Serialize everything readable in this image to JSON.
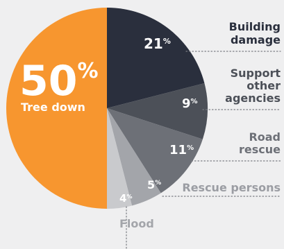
{
  "chart_data": {
    "type": "pie",
    "title": "",
    "slices": [
      {
        "label": "Building damage",
        "label_lines": [
          "Building",
          "damage"
        ],
        "value": 21,
        "display": "21",
        "color": "#2a2f3d",
        "label_color": "#2a2f3d"
      },
      {
        "label": "Support other agencies",
        "label_lines": [
          "Support",
          "other",
          "agencies"
        ],
        "value": 9,
        "display": "9",
        "color": "#4c5058",
        "label_color": "#4c5058"
      },
      {
        "label": "Road rescue",
        "label_lines": [
          "Road",
          "rescue"
        ],
        "value": 11,
        "display": "11",
        "color": "#6d7077",
        "label_color": "#6d7077"
      },
      {
        "label": "Rescue persons",
        "label_lines": [
          "Rescue persons"
        ],
        "value": 5,
        "display": "5",
        "color": "#a3a5aa",
        "label_color": "#9b9da3"
      },
      {
        "label": "Flood",
        "label_lines": [
          "Flood"
        ],
        "value": 4,
        "display": "4",
        "color": "#c9cacd",
        "label_color": "#a3a5aa"
      },
      {
        "label": "Tree down",
        "label_lines": [
          "Tree down"
        ],
        "value": 50,
        "display": "50",
        "color": "#f7962f",
        "label_color": "#ffffff"
      }
    ],
    "unit": "%",
    "background": "#efeff0"
  }
}
